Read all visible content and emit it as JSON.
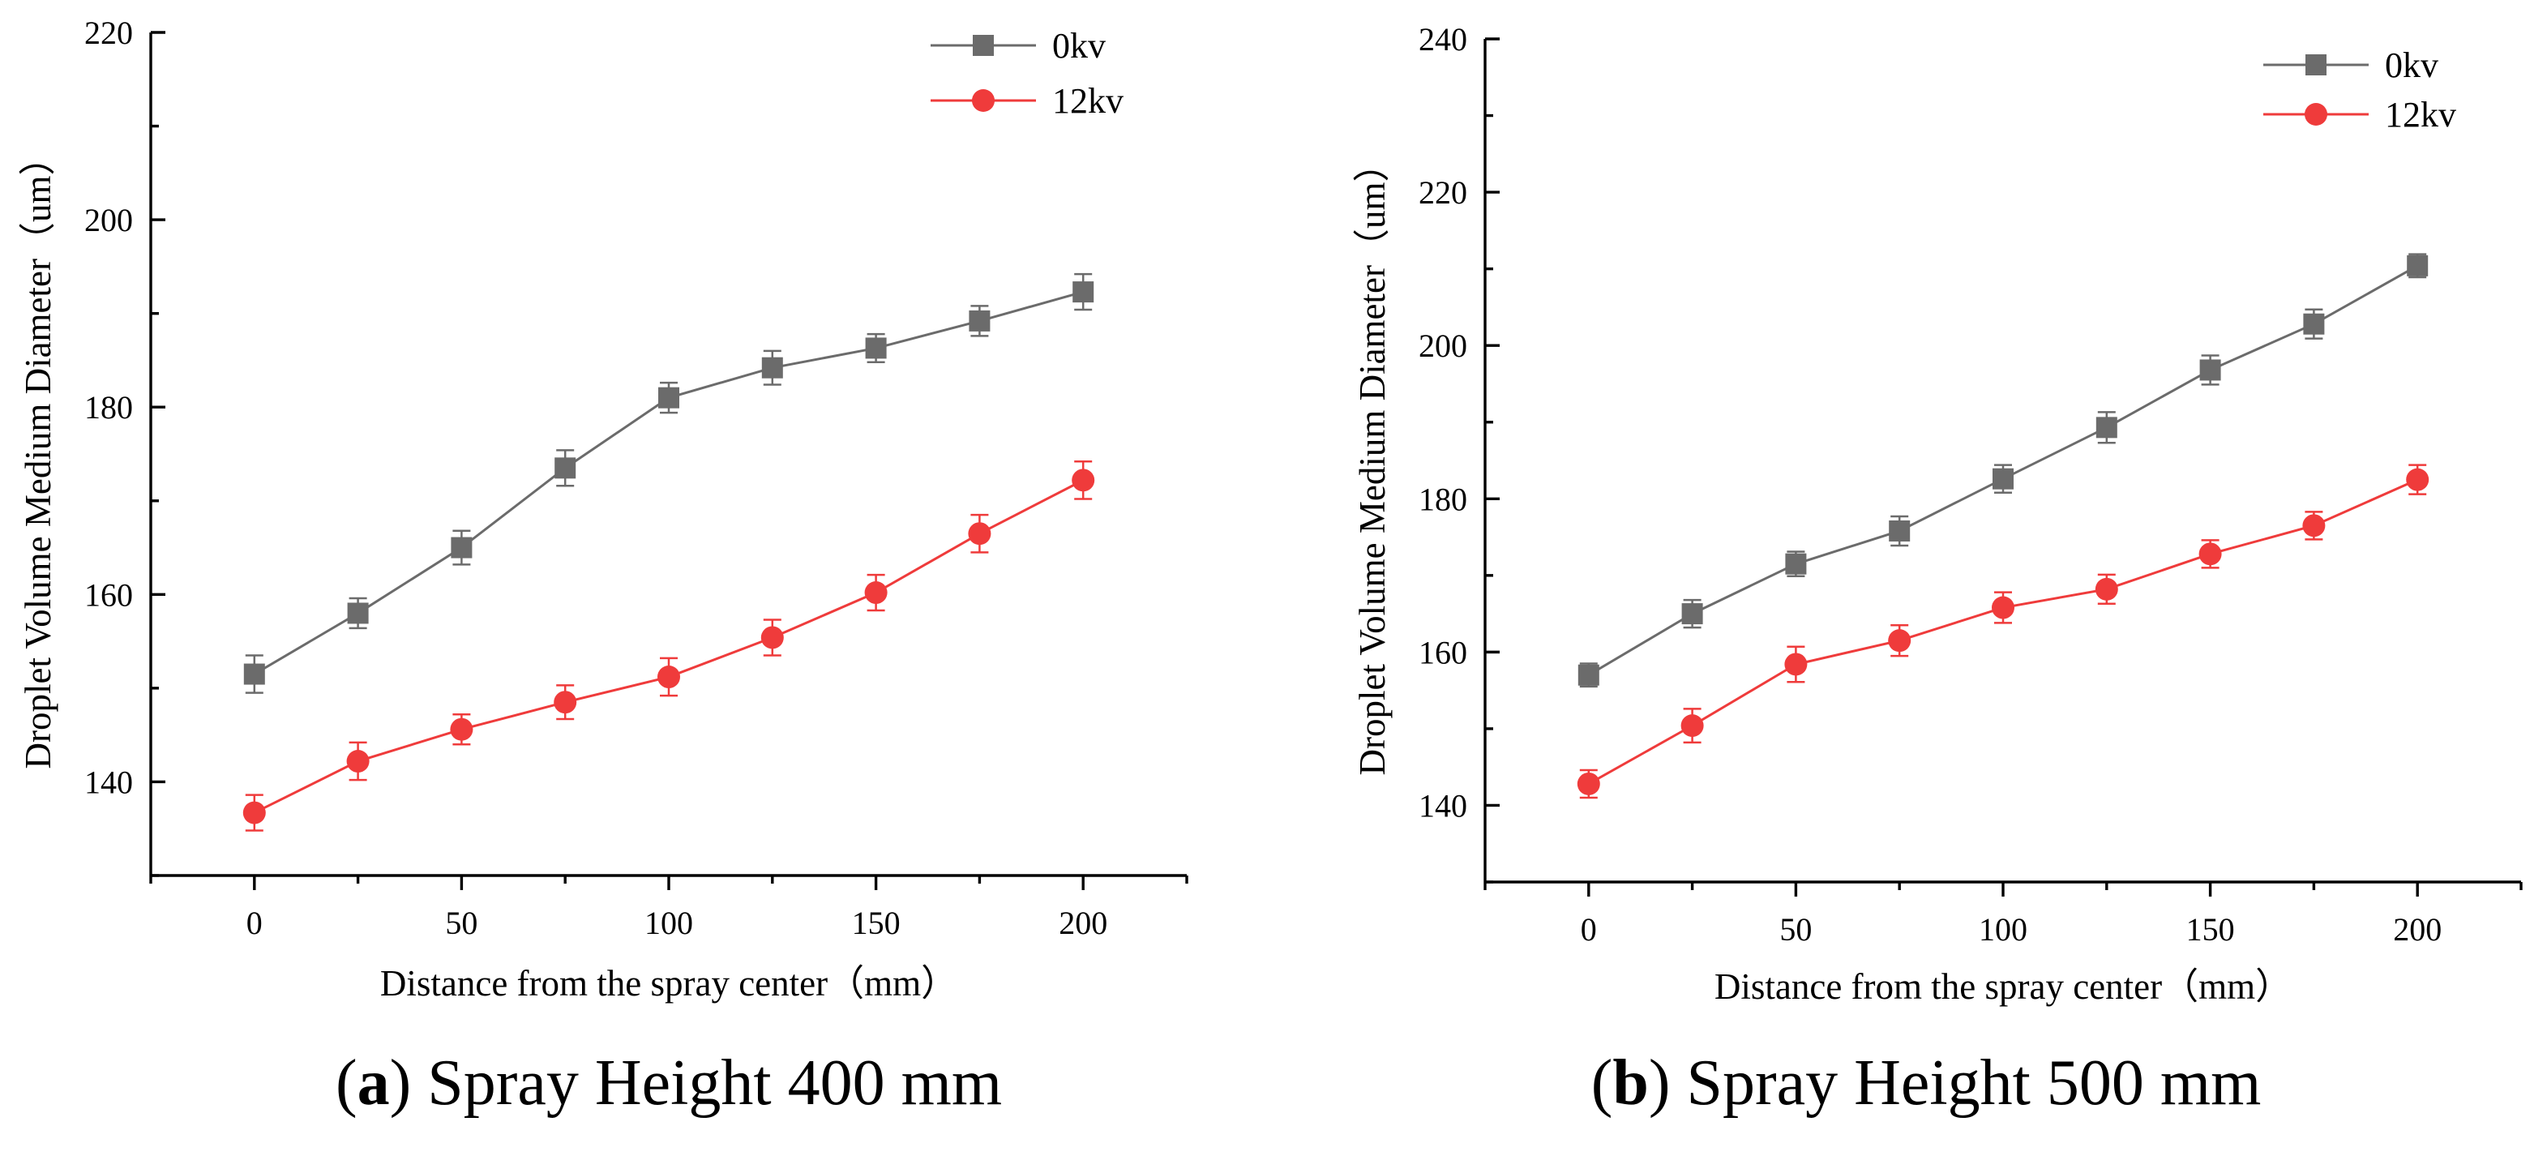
{
  "colors": {
    "series_0kv": "#6b6b6b",
    "series_12kv": "#ef3b3b",
    "axis": "#000000"
  },
  "chart_data": [
    {
      "id": "a",
      "type": "line",
      "caption_letter": "a",
      "caption_text": " Spray Height 400 mm",
      "xlabel": "Distance from the spray center（mm）",
      "ylabel": "Droplet Volume Medium Diameter（um）",
      "x": [
        0,
        25,
        50,
        75,
        100,
        125,
        150,
        175,
        200
      ],
      "xlim": [
        -25,
        225
      ],
      "ylim": [
        130,
        220
      ],
      "xticks": [
        0,
        50,
        100,
        150,
        200
      ],
      "yticks": [
        140,
        160,
        180,
        200,
        220
      ],
      "legend_position": "top-right",
      "series": [
        {
          "name": "0kv",
          "marker": "square",
          "values": [
            151.5,
            158.0,
            165.0,
            173.5,
            181.0,
            184.2,
            186.3,
            189.2,
            192.3
          ],
          "errors": [
            2.0,
            1.6,
            1.8,
            1.9,
            1.6,
            1.8,
            1.5,
            1.6,
            1.9
          ]
        },
        {
          "name": "12kv",
          "marker": "circle",
          "values": [
            136.7,
            142.2,
            145.6,
            148.5,
            151.2,
            155.4,
            160.2,
            166.5,
            172.2
          ],
          "errors": [
            1.9,
            2.0,
            1.6,
            1.8,
            2.0,
            1.9,
            1.9,
            2.0,
            2.0
          ]
        }
      ]
    },
    {
      "id": "b",
      "type": "line",
      "caption_letter": "b",
      "caption_text": " Spray Height 500 mm",
      "xlabel": "Distance from the spray center（mm）",
      "ylabel": "Droplet Volume Medium Diameter（um）",
      "x": [
        0,
        25,
        50,
        75,
        100,
        125,
        150,
        175,
        200
      ],
      "xlim": [
        -25,
        225
      ],
      "ylim": [
        130,
        240
      ],
      "xticks": [
        0,
        50,
        100,
        150,
        200
      ],
      "yticks": [
        140,
        160,
        180,
        200,
        220,
        240
      ],
      "legend_position": "top-right",
      "series": [
        {
          "name": "0kv",
          "marker": "square",
          "values": [
            157.0,
            165.0,
            171.5,
            175.8,
            182.6,
            189.3,
            196.8,
            202.8,
            210.4
          ],
          "errors": [
            1.5,
            1.8,
            1.6,
            1.9,
            1.8,
            2.0,
            1.9,
            1.9,
            1.5
          ]
        },
        {
          "name": "12kv",
          "marker": "circle",
          "values": [
            142.8,
            150.4,
            158.4,
            161.5,
            165.8,
            168.2,
            172.8,
            176.5,
            182.5
          ],
          "errors": [
            1.8,
            2.2,
            2.3,
            2.0,
            2.0,
            1.9,
            1.8,
            1.8,
            1.9
          ]
        }
      ]
    }
  ]
}
